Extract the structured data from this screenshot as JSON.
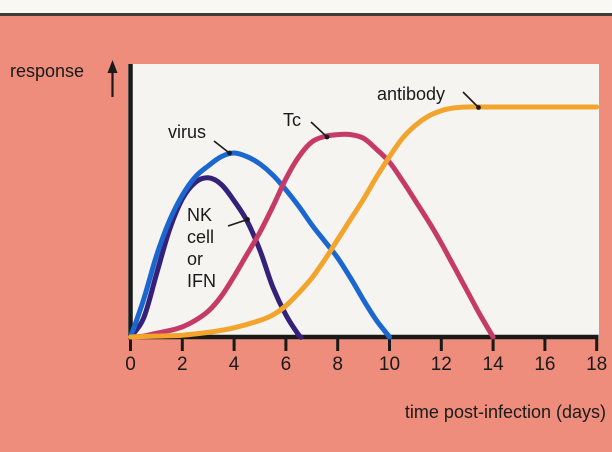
{
  "page": {
    "background_color": "#ee8d7b",
    "panel_color": "#f5f4f0",
    "top_strip_color": "#f9f8f4",
    "top_rule_color": "#403d36",
    "text_color": "#1a1a1a"
  },
  "figure": {
    "ylabel": "response",
    "xlabel": "time post-infection (days)",
    "annotations": {
      "virus": "virus",
      "tc": "Tc",
      "antibody": "antibody",
      "nk_lines": [
        "NK",
        "cell",
        "or",
        "IFN"
      ]
    }
  },
  "chart_data": {
    "type": "line",
    "title": "",
    "xlabel": "time post-infection (days)",
    "ylabel": "response",
    "x_axis": {
      "min": 0,
      "max": 18,
      "tick_step": 2,
      "tick_labels": [
        "0",
        "2",
        "4",
        "6",
        "8",
        "10",
        "12",
        "14",
        "16",
        "18"
      ]
    },
    "y_axis": {
      "units": "relative response (arbitrary units, virus peak = 1.0)",
      "min": 0,
      "max": 1.3,
      "ticks_shown": false
    },
    "grid": false,
    "legend": "inline curve annotations with pointer lines",
    "series": [
      {
        "name": "NK cell or IFN",
        "key": "nk_ifn",
        "color": "#352179",
        "points": [
          [
            0,
            0
          ],
          [
            0.5,
            0.1
          ],
          [
            1,
            0.34
          ],
          [
            1.5,
            0.58
          ],
          [
            2,
            0.75
          ],
          [
            2.5,
            0.84
          ],
          [
            3,
            0.865
          ],
          [
            3.5,
            0.83
          ],
          [
            4,
            0.74
          ],
          [
            4.5,
            0.63
          ],
          [
            5,
            0.47
          ],
          [
            5.5,
            0.27
          ],
          [
            6,
            0.12
          ],
          [
            6.5,
            0.01
          ],
          [
            6.6,
            0
          ]
        ]
      },
      {
        "name": "virus",
        "key": "virus",
        "color": "#1c67cf",
        "points": [
          [
            0,
            0
          ],
          [
            0.5,
            0.2
          ],
          [
            1,
            0.44
          ],
          [
            1.5,
            0.63
          ],
          [
            2,
            0.77
          ],
          [
            2.5,
            0.87
          ],
          [
            3,
            0.93
          ],
          [
            3.5,
            0.98
          ],
          [
            4,
            1.0
          ],
          [
            4.5,
            0.98
          ],
          [
            5,
            0.94
          ],
          [
            5.5,
            0.88
          ],
          [
            6,
            0.8
          ],
          [
            6.5,
            0.71
          ],
          [
            7,
            0.61
          ],
          [
            7.5,
            0.52
          ],
          [
            8,
            0.43
          ],
          [
            8.5,
            0.32
          ],
          [
            9,
            0.2
          ],
          [
            9.5,
            0.09
          ],
          [
            10,
            0
          ]
        ]
      },
      {
        "name": "Tc",
        "key": "tc",
        "color": "#c63a68",
        "points": [
          [
            0,
            0
          ],
          [
            0.5,
            0.005
          ],
          [
            1,
            0.02
          ],
          [
            1.5,
            0.035
          ],
          [
            2,
            0.055
          ],
          [
            2.5,
            0.09
          ],
          [
            3,
            0.14
          ],
          [
            3.5,
            0.22
          ],
          [
            4,
            0.33
          ],
          [
            4.5,
            0.45
          ],
          [
            5,
            0.57
          ],
          [
            5.5,
            0.71
          ],
          [
            6,
            0.86
          ],
          [
            6.5,
            0.98
          ],
          [
            7,
            1.06
          ],
          [
            7.5,
            1.09
          ],
          [
            8,
            1.1
          ],
          [
            8.5,
            1.1
          ],
          [
            9,
            1.08
          ],
          [
            9.5,
            1.02
          ],
          [
            10,
            0.95
          ],
          [
            10.5,
            0.85
          ],
          [
            11,
            0.74
          ],
          [
            11.5,
            0.63
          ],
          [
            12,
            0.51
          ],
          [
            12.5,
            0.38
          ],
          [
            13,
            0.25
          ],
          [
            13.5,
            0.12
          ],
          [
            14,
            0
          ]
        ]
      },
      {
        "name": "antibody",
        "key": "antibody",
        "color": "#f2a42d",
        "points": [
          [
            0,
            0
          ],
          [
            1,
            0.005
          ],
          [
            2,
            0.01
          ],
          [
            3,
            0.025
          ],
          [
            4,
            0.05
          ],
          [
            5,
            0.09
          ],
          [
            5.5,
            0.12
          ],
          [
            6,
            0.17
          ],
          [
            6.5,
            0.24
          ],
          [
            7,
            0.32
          ],
          [
            7.5,
            0.42
          ],
          [
            8,
            0.53
          ],
          [
            8.5,
            0.64
          ],
          [
            9,
            0.75
          ],
          [
            9.5,
            0.87
          ],
          [
            10,
            0.98
          ],
          [
            10.5,
            1.08
          ],
          [
            11,
            1.15
          ],
          [
            11.5,
            1.2
          ],
          [
            12,
            1.23
          ],
          [
            12.5,
            1.245
          ],
          [
            13,
            1.25
          ],
          [
            14,
            1.25
          ],
          [
            15,
            1.25
          ],
          [
            16,
            1.25
          ],
          [
            17,
            1.25
          ],
          [
            18,
            1.25
          ]
        ]
      }
    ]
  }
}
